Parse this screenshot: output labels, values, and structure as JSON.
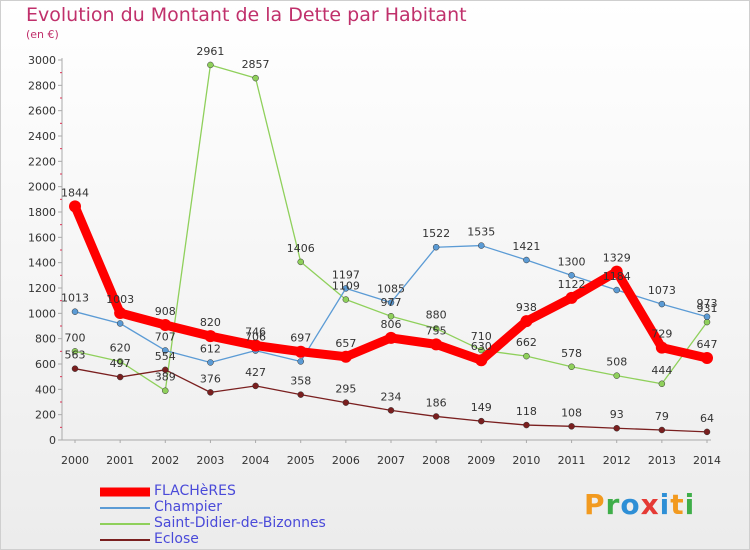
{
  "header": {
    "title": "Evolution du Montant de la Dette par Habitant",
    "subtitle": "(en €)"
  },
  "logo": {
    "text": "Proxiti",
    "colors": [
      "#f29a1f",
      "#3fae49",
      "#2e8fd6",
      "#e53a35",
      "#2e8fd6",
      "#f29a1f",
      "#3fae49"
    ]
  },
  "chart_data": {
    "type": "line",
    "x": [
      "2000",
      "2001",
      "2002",
      "2003",
      "2004",
      "2005",
      "2006",
      "2007",
      "2008",
      "2009",
      "2010",
      "2011",
      "2012",
      "2013",
      "2014"
    ],
    "ylim": [
      0,
      3000
    ],
    "yticks": [
      0,
      200,
      400,
      600,
      800,
      1000,
      1200,
      1400,
      1600,
      1800,
      2000,
      2200,
      2400,
      2600,
      2800,
      3000
    ],
    "grid": false,
    "legend_position": "bottom-left",
    "series": [
      {
        "name": "FLACHèRES",
        "color": "#ff0000",
        "values": [
          1844,
          1003,
          908,
          820,
          746,
          697,
          657,
          806,
          755,
          630,
          938,
          1122,
          1329,
          729,
          647
        ],
        "labels": [
          "1844",
          "1003",
          "908",
          "820",
          "746",
          "697",
          "657",
          "806",
          "755",
          "630",
          "938",
          "1122",
          "1329",
          "729",
          "647"
        ]
      },
      {
        "name": "Champier",
        "color": "#5b9bd5",
        "values": [
          1013,
          920,
          707,
          612,
          706,
          620,
          1197,
          1085,
          1522,
          1535,
          1421,
          1300,
          1184,
          1073,
          973
        ],
        "labels": [
          "1013",
          "",
          "707",
          "612",
          "706",
          "",
          "1197",
          "1085",
          "1522",
          "1535",
          "1421",
          "1300",
          "1184",
          "1073",
          "973"
        ]
      },
      {
        "name": "Saint-Didier-de-Bizonnes",
        "color": "#8fd05b",
        "values": [
          700,
          620,
          389,
          2961,
          2857,
          1406,
          1109,
          977,
          880,
          710,
          662,
          578,
          508,
          444,
          931
        ],
        "labels": [
          "700",
          "620",
          "389",
          "2961",
          "2857",
          "1406",
          "1109",
          "977",
          "880",
          "710",
          "662",
          "578",
          "508",
          "444",
          "931"
        ]
      },
      {
        "name": "Eclose",
        "color": "#7a1f1f",
        "values": [
          563,
          497,
          554,
          376,
          427,
          358,
          295,
          234,
          186,
          149,
          118,
          108,
          93,
          79,
          64
        ],
        "labels": [
          "563",
          "497",
          "554",
          "376",
          "427",
          "358",
          "295",
          "234",
          "186",
          "149",
          "118",
          "108",
          "93",
          "79",
          "64"
        ]
      }
    ]
  }
}
